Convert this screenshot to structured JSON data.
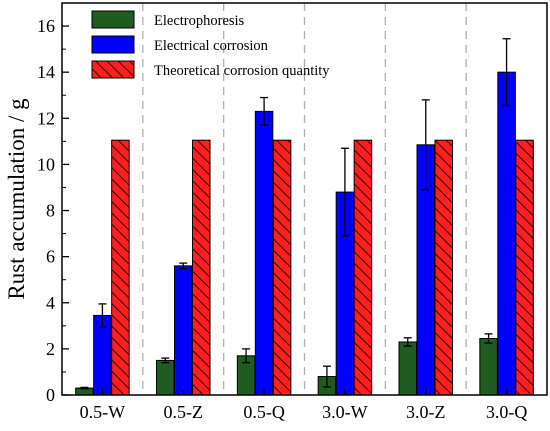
{
  "chart_data": {
    "type": "bar",
    "title": "",
    "xlabel": "",
    "ylabel": "Rust accumulation  / g",
    "categories": [
      "0.5-W",
      "0.5-Z",
      "0.5-Q",
      "3.0-W",
      "3.0-Z",
      "3.0-Q"
    ],
    "ylim": [
      0,
      17
    ],
    "yticks": [
      0,
      2,
      4,
      6,
      8,
      10,
      12,
      14,
      16
    ],
    "grid": false,
    "group_separators": "vertical dashed lines between categories",
    "legend": "top-left",
    "series": [
      {
        "name": "Electrophoresis",
        "values": [
          0.3,
          1.5,
          1.7,
          0.8,
          2.3,
          2.45
        ],
        "errors": [
          0.03,
          0.1,
          0.3,
          0.45,
          0.18,
          0.2
        ],
        "color": "#1f5c1f",
        "pattern": "solid"
      },
      {
        "name": "Electrical corrosion",
        "values": [
          3.45,
          5.6,
          12.3,
          8.8,
          10.85,
          14.0
        ],
        "errors": [
          0.5,
          0.12,
          0.6,
          1.9,
          1.95,
          1.45
        ],
        "color": "#0000ff",
        "pattern": "solid"
      },
      {
        "name": "Theoretical corrosion quantity",
        "values": [
          11.05,
          11.05,
          11.05,
          11.05,
          11.05,
          11.05
        ],
        "errors": [
          0,
          0,
          0,
          0,
          0,
          0
        ],
        "color": "#ff2020",
        "pattern": "diagonal-hatch"
      }
    ]
  }
}
